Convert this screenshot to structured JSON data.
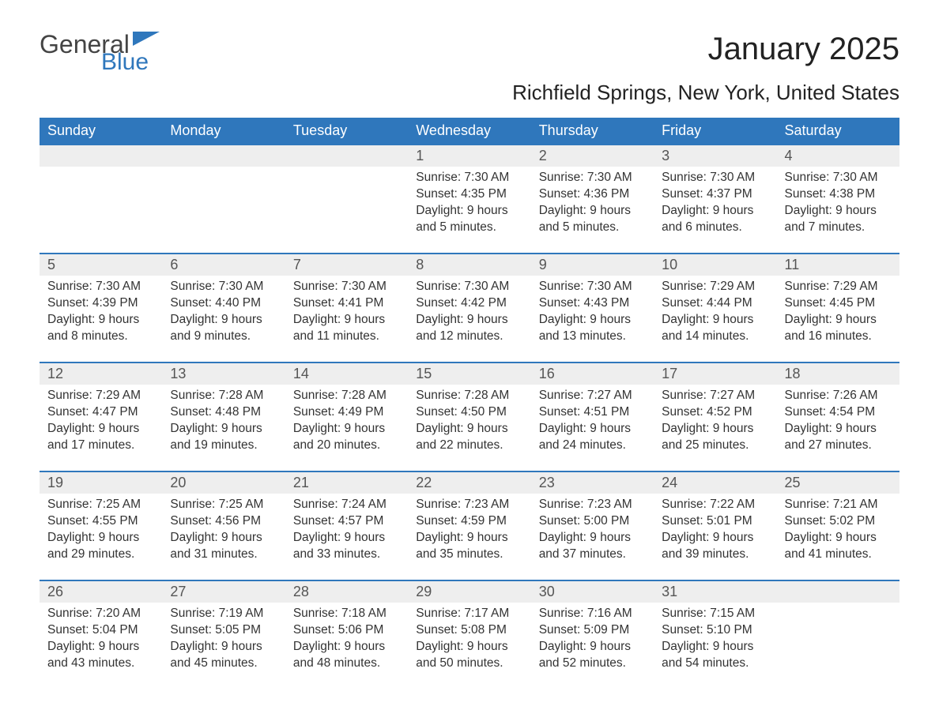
{
  "logo": {
    "text1": "General",
    "text2": "Blue",
    "accent_color": "#2f77bc"
  },
  "title": "January 2025",
  "location": "Richfield Springs, New York, United States",
  "colors": {
    "header_bg": "#2f77bc",
    "header_text": "#ffffff",
    "daynum_bg": "#eeeeee",
    "row_border": "#2f77bc",
    "text": "#333333",
    "background": "#ffffff"
  },
  "day_headers": [
    "Sunday",
    "Monday",
    "Tuesday",
    "Wednesday",
    "Thursday",
    "Friday",
    "Saturday"
  ],
  "weeks": [
    [
      null,
      null,
      null,
      {
        "n": "1",
        "sr": "Sunrise: 7:30 AM",
        "ss": "Sunset: 4:35 PM",
        "d1": "Daylight: 9 hours",
        "d2": "and 5 minutes."
      },
      {
        "n": "2",
        "sr": "Sunrise: 7:30 AM",
        "ss": "Sunset: 4:36 PM",
        "d1": "Daylight: 9 hours",
        "d2": "and 5 minutes."
      },
      {
        "n": "3",
        "sr": "Sunrise: 7:30 AM",
        "ss": "Sunset: 4:37 PM",
        "d1": "Daylight: 9 hours",
        "d2": "and 6 minutes."
      },
      {
        "n": "4",
        "sr": "Sunrise: 7:30 AM",
        "ss": "Sunset: 4:38 PM",
        "d1": "Daylight: 9 hours",
        "d2": "and 7 minutes."
      }
    ],
    [
      {
        "n": "5",
        "sr": "Sunrise: 7:30 AM",
        "ss": "Sunset: 4:39 PM",
        "d1": "Daylight: 9 hours",
        "d2": "and 8 minutes."
      },
      {
        "n": "6",
        "sr": "Sunrise: 7:30 AM",
        "ss": "Sunset: 4:40 PM",
        "d1": "Daylight: 9 hours",
        "d2": "and 9 minutes."
      },
      {
        "n": "7",
        "sr": "Sunrise: 7:30 AM",
        "ss": "Sunset: 4:41 PM",
        "d1": "Daylight: 9 hours",
        "d2": "and 11 minutes."
      },
      {
        "n": "8",
        "sr": "Sunrise: 7:30 AM",
        "ss": "Sunset: 4:42 PM",
        "d1": "Daylight: 9 hours",
        "d2": "and 12 minutes."
      },
      {
        "n": "9",
        "sr": "Sunrise: 7:30 AM",
        "ss": "Sunset: 4:43 PM",
        "d1": "Daylight: 9 hours",
        "d2": "and 13 minutes."
      },
      {
        "n": "10",
        "sr": "Sunrise: 7:29 AM",
        "ss": "Sunset: 4:44 PM",
        "d1": "Daylight: 9 hours",
        "d2": "and 14 minutes."
      },
      {
        "n": "11",
        "sr": "Sunrise: 7:29 AM",
        "ss": "Sunset: 4:45 PM",
        "d1": "Daylight: 9 hours",
        "d2": "and 16 minutes."
      }
    ],
    [
      {
        "n": "12",
        "sr": "Sunrise: 7:29 AM",
        "ss": "Sunset: 4:47 PM",
        "d1": "Daylight: 9 hours",
        "d2": "and 17 minutes."
      },
      {
        "n": "13",
        "sr": "Sunrise: 7:28 AM",
        "ss": "Sunset: 4:48 PM",
        "d1": "Daylight: 9 hours",
        "d2": "and 19 minutes."
      },
      {
        "n": "14",
        "sr": "Sunrise: 7:28 AM",
        "ss": "Sunset: 4:49 PM",
        "d1": "Daylight: 9 hours",
        "d2": "and 20 minutes."
      },
      {
        "n": "15",
        "sr": "Sunrise: 7:28 AM",
        "ss": "Sunset: 4:50 PM",
        "d1": "Daylight: 9 hours",
        "d2": "and 22 minutes."
      },
      {
        "n": "16",
        "sr": "Sunrise: 7:27 AM",
        "ss": "Sunset: 4:51 PM",
        "d1": "Daylight: 9 hours",
        "d2": "and 24 minutes."
      },
      {
        "n": "17",
        "sr": "Sunrise: 7:27 AM",
        "ss": "Sunset: 4:52 PM",
        "d1": "Daylight: 9 hours",
        "d2": "and 25 minutes."
      },
      {
        "n": "18",
        "sr": "Sunrise: 7:26 AM",
        "ss": "Sunset: 4:54 PM",
        "d1": "Daylight: 9 hours",
        "d2": "and 27 minutes."
      }
    ],
    [
      {
        "n": "19",
        "sr": "Sunrise: 7:25 AM",
        "ss": "Sunset: 4:55 PM",
        "d1": "Daylight: 9 hours",
        "d2": "and 29 minutes."
      },
      {
        "n": "20",
        "sr": "Sunrise: 7:25 AM",
        "ss": "Sunset: 4:56 PM",
        "d1": "Daylight: 9 hours",
        "d2": "and 31 minutes."
      },
      {
        "n": "21",
        "sr": "Sunrise: 7:24 AM",
        "ss": "Sunset: 4:57 PM",
        "d1": "Daylight: 9 hours",
        "d2": "and 33 minutes."
      },
      {
        "n": "22",
        "sr": "Sunrise: 7:23 AM",
        "ss": "Sunset: 4:59 PM",
        "d1": "Daylight: 9 hours",
        "d2": "and 35 minutes."
      },
      {
        "n": "23",
        "sr": "Sunrise: 7:23 AM",
        "ss": "Sunset: 5:00 PM",
        "d1": "Daylight: 9 hours",
        "d2": "and 37 minutes."
      },
      {
        "n": "24",
        "sr": "Sunrise: 7:22 AM",
        "ss": "Sunset: 5:01 PM",
        "d1": "Daylight: 9 hours",
        "d2": "and 39 minutes."
      },
      {
        "n": "25",
        "sr": "Sunrise: 7:21 AM",
        "ss": "Sunset: 5:02 PM",
        "d1": "Daylight: 9 hours",
        "d2": "and 41 minutes."
      }
    ],
    [
      {
        "n": "26",
        "sr": "Sunrise: 7:20 AM",
        "ss": "Sunset: 5:04 PM",
        "d1": "Daylight: 9 hours",
        "d2": "and 43 minutes."
      },
      {
        "n": "27",
        "sr": "Sunrise: 7:19 AM",
        "ss": "Sunset: 5:05 PM",
        "d1": "Daylight: 9 hours",
        "d2": "and 45 minutes."
      },
      {
        "n": "28",
        "sr": "Sunrise: 7:18 AM",
        "ss": "Sunset: 5:06 PM",
        "d1": "Daylight: 9 hours",
        "d2": "and 48 minutes."
      },
      {
        "n": "29",
        "sr": "Sunrise: 7:17 AM",
        "ss": "Sunset: 5:08 PM",
        "d1": "Daylight: 9 hours",
        "d2": "and 50 minutes."
      },
      {
        "n": "30",
        "sr": "Sunrise: 7:16 AM",
        "ss": "Sunset: 5:09 PM",
        "d1": "Daylight: 9 hours",
        "d2": "and 52 minutes."
      },
      {
        "n": "31",
        "sr": "Sunrise: 7:15 AM",
        "ss": "Sunset: 5:10 PM",
        "d1": "Daylight: 9 hours",
        "d2": "and 54 minutes."
      },
      null
    ]
  ]
}
